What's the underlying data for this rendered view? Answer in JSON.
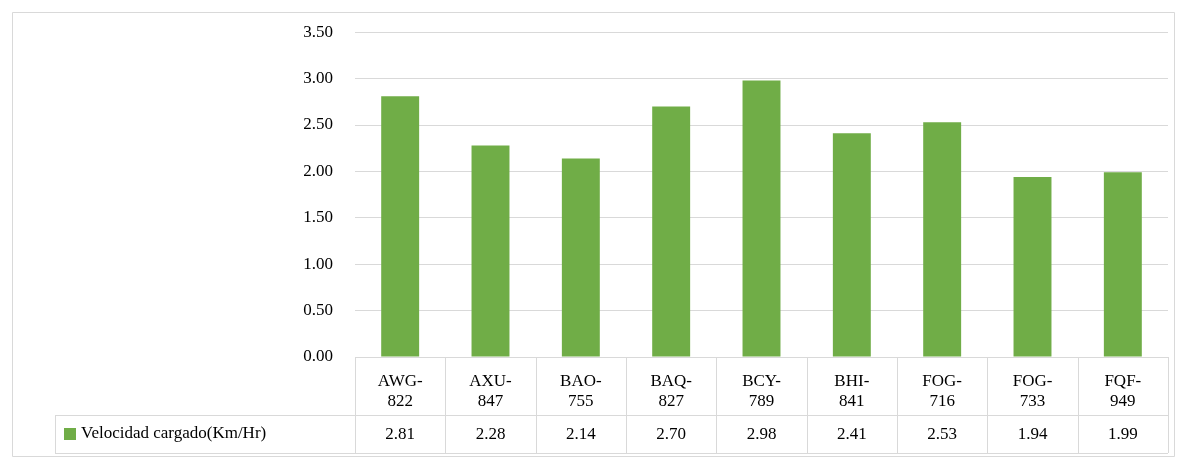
{
  "chart_data": {
    "type": "bar",
    "categories": [
      "AWG-822",
      "AXU-847",
      "BAO-755",
      "BAQ-827",
      "BCY-789",
      "BHI-841",
      "FOG-716",
      "FOG-733",
      "FQF-949"
    ],
    "series": [
      {
        "name": "Velocidad cargado(Km/Hr)",
        "color": "#70ad47",
        "values": [
          2.81,
          2.28,
          2.14,
          2.7,
          2.98,
          2.41,
          2.53,
          1.94,
          1.99
        ],
        "value_labels": [
          "2.81",
          "2.28",
          "2.14",
          "2.70",
          "2.98",
          "2.41",
          "2.53",
          "1.94",
          "1.99"
        ]
      }
    ],
    "ylim": [
      0,
      3.5
    ],
    "yticks": [
      {
        "value": 0,
        "label": "0.00"
      },
      {
        "value": 0.5,
        "label": "0.50"
      },
      {
        "value": 1,
        "label": "1.00"
      },
      {
        "value": 1.5,
        "label": "1.50"
      },
      {
        "value": 2,
        "label": "2.00"
      },
      {
        "value": 2.5,
        "label": "2.50"
      },
      {
        "value": 3,
        "label": "3.00"
      },
      {
        "value": 3.5,
        "label": "3.50"
      }
    ],
    "grid": "y",
    "legend": "bottom left"
  }
}
